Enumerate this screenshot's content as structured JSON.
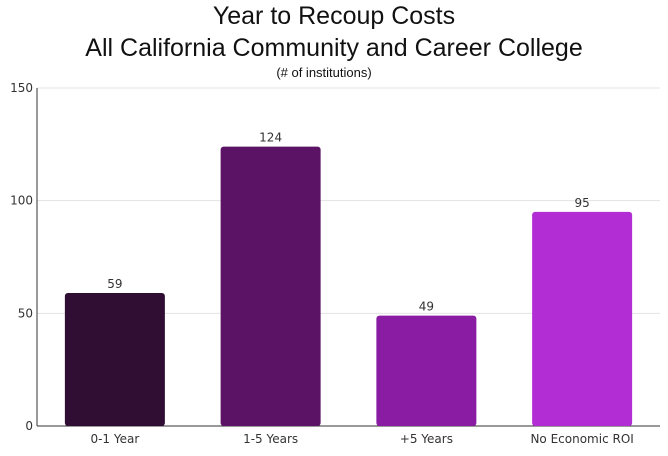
{
  "chart_data": {
    "type": "bar",
    "title": "Year to Recoup Costs",
    "title_line2": "All California Community and Career College",
    "subtitle": "(# of institutions)",
    "xlabel": "",
    "ylabel": "",
    "categories": [
      "0-1 Year",
      "1-5 Years",
      "+5 Years",
      "No Economic ROI"
    ],
    "values": [
      59,
      124,
      49,
      95
    ],
    "colors": [
      "#300d33",
      "#5b1465",
      "#8a1ba3",
      "#b22dd3"
    ],
    "ylim": [
      0,
      150
    ],
    "yticks": [
      0,
      50,
      100,
      150
    ],
    "grid": true,
    "legend": "none"
  }
}
